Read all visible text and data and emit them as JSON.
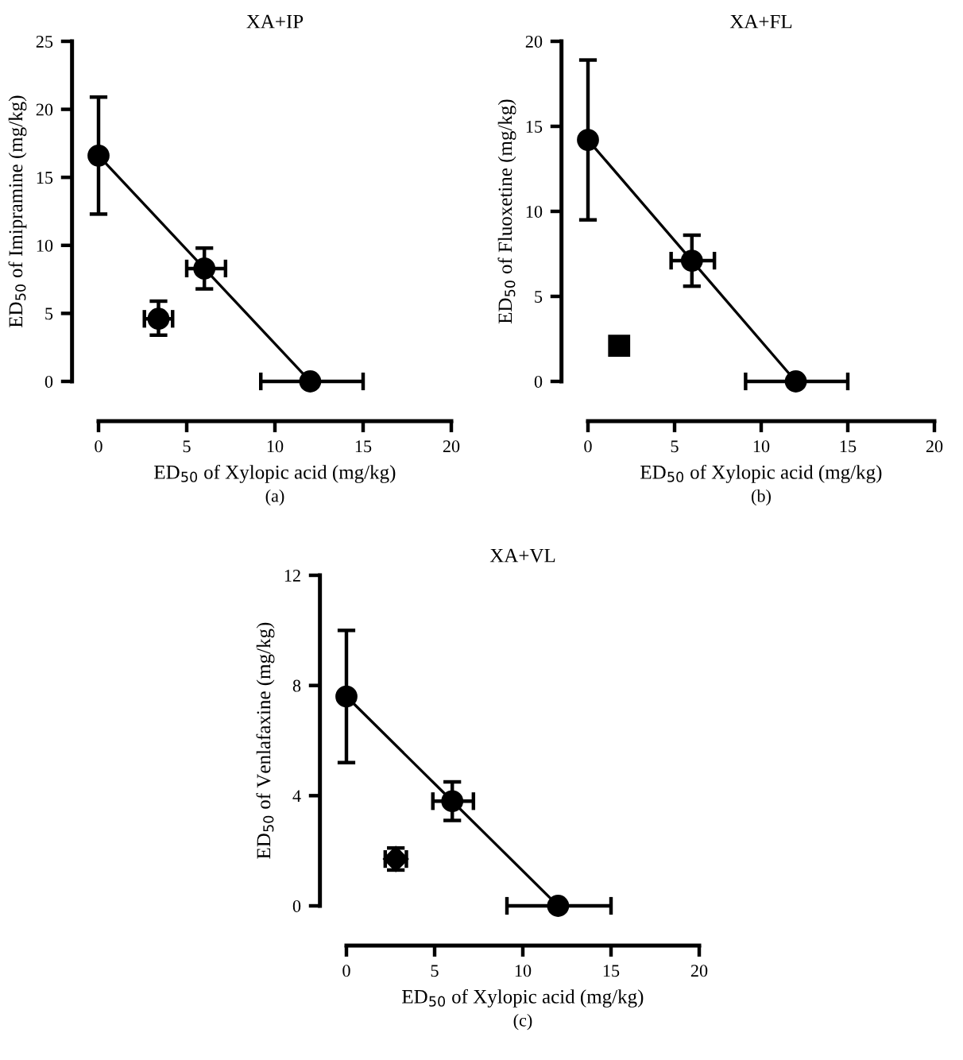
{
  "chart_data": [
    {
      "type": "line",
      "title": "XA+IP",
      "xlabel": "ED$_{50}$ of Xylopic acid (mg/kg)",
      "ylabel": "ED$_{50}$ of Imipramine (mg/kg)",
      "annotations": [
        "(a)"
      ],
      "xlim": [
        0,
        20
      ],
      "ylim": [
        0,
        25
      ],
      "xticks": [
        0,
        5,
        10,
        15,
        20
      ],
      "yticks": [
        0,
        5,
        10,
        15,
        20,
        25
      ],
      "grid": false,
      "legend": false,
      "series": [
        {
          "color": "#000000",
          "marker": "circle",
          "x": [
            0,
            6,
            12
          ],
          "values": [
            16.6,
            8.3,
            0
          ],
          "errors": [
            [
              12.3,
              20.9
            ],
            [
              6.8,
              9.8
            ],
            null
          ],
          "xerrors": [
            null,
            [
              5.0,
              7.2
            ],
            [
              9.2,
              15.0
            ]
          ]
        },
        {
          "type": "scatter",
          "color": "#000000",
          "marker": "circle",
          "x": [
            3.4
          ],
          "values": [
            4.6
          ],
          "errors": [
            [
              3.4,
              5.9
            ]
          ],
          "xerrors": [
            [
              2.6,
              4.2
            ]
          ]
        }
      ]
    },
    {
      "type": "line",
      "title": "XA+FL",
      "xlabel": "ED$_{50}$ of Xylopic acid (mg/kg)",
      "ylabel": "ED$_{50}$ of Fluoxetine (mg/kg)",
      "annotations": [
        "(b)"
      ],
      "xlim": [
        0,
        20
      ],
      "ylim": [
        0,
        20
      ],
      "xticks": [
        0,
        5,
        10,
        15,
        20
      ],
      "yticks": [
        0,
        5,
        10,
        15,
        20
      ],
      "grid": false,
      "legend": false,
      "series": [
        {
          "color": "#000000",
          "marker": "circle",
          "x": [
            0,
            6,
            12
          ],
          "values": [
            14.2,
            7.1,
            0
          ],
          "errors": [
            [
              9.5,
              18.9
            ],
            [
              5.6,
              8.6
            ],
            null
          ],
          "xerrors": [
            null,
            [
              4.8,
              7.3
            ],
            [
              9.1,
              15.0
            ]
          ]
        },
        {
          "type": "scatter",
          "color": "#000000",
          "marker": "square",
          "x": [
            1.8
          ],
          "values": [
            2.1
          ]
        }
      ]
    },
    {
      "type": "line",
      "title": "XA+VL",
      "xlabel": "ED$_{50}$ of Xylopic acid (mg/kg)",
      "ylabel": "ED$_{50}$ of Venlafaxine (mg/kg)",
      "annotations": [
        "(c)"
      ],
      "xlim": [
        0,
        20
      ],
      "ylim": [
        0,
        12
      ],
      "xticks": [
        0,
        5,
        10,
        15,
        20
      ],
      "yticks": [
        0,
        4,
        8,
        12
      ],
      "grid": false,
      "legend": false,
      "series": [
        {
          "color": "#000000",
          "marker": "circle",
          "x": [
            0,
            6,
            12
          ],
          "values": [
            7.6,
            3.8,
            0
          ],
          "errors": [
            [
              5.2,
              10.0
            ],
            [
              3.1,
              4.5
            ],
            null
          ],
          "xerrors": [
            null,
            [
              4.9,
              7.2
            ],
            [
              9.1,
              15.0
            ]
          ]
        },
        {
          "type": "scatter",
          "color": "#000000",
          "marker": "diamond",
          "x": [
            2.8
          ],
          "values": [
            1.7
          ],
          "errors": [
            [
              1.3,
              2.1
            ]
          ],
          "xerrors": [
            [
              2.2,
              3.4
            ]
          ]
        }
      ]
    }
  ]
}
